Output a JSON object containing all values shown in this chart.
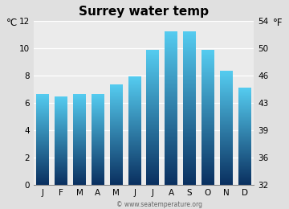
{
  "title": "Surrey water temp",
  "months": [
    "J",
    "F",
    "M",
    "A",
    "M",
    "J",
    "J",
    "A",
    "S",
    "O",
    "N",
    "D"
  ],
  "values_c": [
    6.6,
    6.4,
    6.6,
    6.6,
    7.3,
    7.9,
    9.8,
    11.2,
    11.2,
    9.8,
    8.3,
    7.1
  ],
  "ylim_c": [
    0,
    12
  ],
  "yticks_c": [
    0,
    2,
    4,
    6,
    8,
    10,
    12
  ],
  "yticks_f": [
    32,
    36,
    39,
    43,
    46,
    50,
    54
  ],
  "ylabel_left": "°C",
  "ylabel_right": "°F",
  "bar_color_top": "#55ccf0",
  "bar_color_bottom": "#0a3060",
  "fig_bg_color": "#e0e0e0",
  "plot_bg_color": "#ebebeb",
  "watermark": "© www.seatemperature.org",
  "title_fontsize": 11,
  "axis_fontsize": 7.5,
  "bar_width": 0.7
}
